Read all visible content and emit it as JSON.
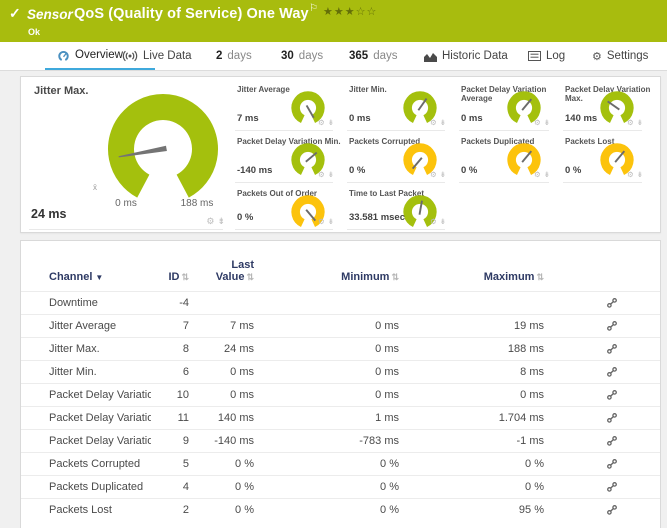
{
  "icons": {
    "check": "✓",
    "flag": "⚐",
    "stars_filled": "★★★",
    "stars_empty": "☆☆",
    "gear": "⚙",
    "pin": "⇟",
    "sort_both": "⇅",
    "sort_desc": "▼"
  },
  "sensor_header": {
    "kind": "Sensor",
    "title": "QoS (Quality of Service) One Way",
    "status": "Ok"
  },
  "tabs": {
    "overview": {
      "label": "Overview"
    },
    "live_data": {
      "label": "Live Data"
    },
    "days2": {
      "num": "2",
      "unit": "days"
    },
    "days30": {
      "num": "30",
      "unit": "days"
    },
    "days365": {
      "num": "365",
      "unit": "days"
    },
    "historic": {
      "label": "Historic Data"
    },
    "log": {
      "label": "Log"
    },
    "settings": {
      "label": "Settings"
    }
  },
  "gauges": {
    "main": {
      "title": "Jitter Max.",
      "value": "24 ms",
      "scale_min": "0 ms",
      "scale_max": "188 ms",
      "avg_marker": "x̄",
      "color": "#a4c00d",
      "needle_angle": -100
    },
    "small": [
      {
        "title": "Jitter Average",
        "value": "7 ms",
        "color": "#a4c00d",
        "needle_angle": 150
      },
      {
        "title": "Jitter Min.",
        "value": "0 ms",
        "color": "#a4c00d",
        "needle_angle": 35
      },
      {
        "title": "Packet Delay Variation Average",
        "value": "0 ms",
        "color": "#a4c00d",
        "needle_angle": 40
      },
      {
        "title": "Packet Delay Variation Max.",
        "value": "140 ms",
        "color": "#a4c00d",
        "needle_angle": -55
      },
      {
        "title": "Packet Delay Variation Min.",
        "value": "-140 ms",
        "color": "#a4c00d",
        "needle_angle": 50
      },
      {
        "title": "Packets Corrupted",
        "value": "0 %",
        "color": "#fcc30c",
        "needle_angle": -140
      },
      {
        "title": "Packets Duplicated",
        "value": "0 %",
        "color": "#fcc30c",
        "needle_angle": 40
      },
      {
        "title": "Packets Lost",
        "value": "0 %",
        "color": "#fcc30c",
        "needle_angle": 40
      },
      {
        "title": "Packets Out of Order",
        "value": "0 %",
        "color": "#fcc30c",
        "needle_angle": 140
      },
      {
        "title": "Time to Last Packet",
        "value": "33.581 msec",
        "color": "#a4c00d",
        "needle_angle": 10
      }
    ]
  },
  "table": {
    "headers": {
      "channel": "Channel",
      "id": "ID",
      "last": "Last Value",
      "min": "Minimum",
      "max": "Maximum"
    },
    "rows": [
      {
        "channel": "Downtime",
        "id": "-4",
        "last": "",
        "min": "",
        "max": ""
      },
      {
        "channel": "Jitter Average",
        "id": "7",
        "last": "7 ms",
        "min": "0 ms",
        "max": "19 ms"
      },
      {
        "channel": "Jitter Max.",
        "id": "8",
        "last": "24 ms",
        "min": "0 ms",
        "max": "188 ms"
      },
      {
        "channel": "Jitter Min.",
        "id": "6",
        "last": "0 ms",
        "min": "0 ms",
        "max": "8 ms"
      },
      {
        "channel": "Packet Delay Variation Av...",
        "id": "10",
        "last": "0 ms",
        "min": "0 ms",
        "max": "0 ms"
      },
      {
        "channel": "Packet Delay Variation Max.",
        "id": "11",
        "last": "140 ms",
        "min": "1 ms",
        "max": "1.704 ms"
      },
      {
        "channel": "Packet Delay Variation Min.",
        "id": "9",
        "last": "-140 ms",
        "min": "-783 ms",
        "max": "-1 ms"
      },
      {
        "channel": "Packets Corrupted",
        "id": "5",
        "last": "0 %",
        "min": "0 %",
        "max": "0 %"
      },
      {
        "channel": "Packets Duplicated",
        "id": "4",
        "last": "0 %",
        "min": "0 %",
        "max": "0 %"
      },
      {
        "channel": "Packets Lost",
        "id": "2",
        "last": "0 %",
        "min": "0 %",
        "max": "95 %"
      }
    ]
  }
}
